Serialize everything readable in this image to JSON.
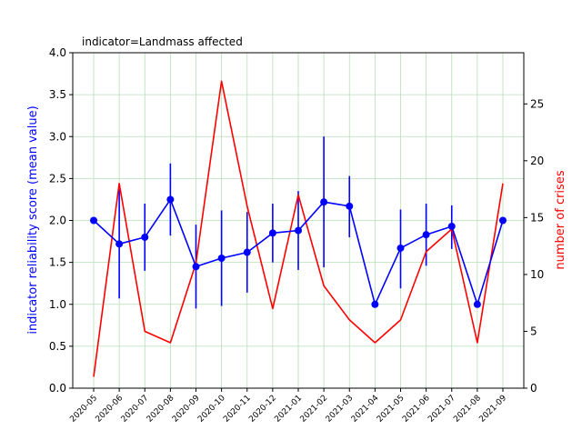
{
  "chart_data": {
    "type": "line",
    "title": "indicator=Landmass affected",
    "categories": [
      "2020-05",
      "2020-06",
      "2020-07",
      "2020-08",
      "2020-09",
      "2020-10",
      "2020-11",
      "2020-12",
      "2021-01",
      "2021-02",
      "2021-03",
      "2021-04",
      "2021-05",
      "2021-06",
      "2021-07",
      "2021-08",
      "2021-09"
    ],
    "left_axis": {
      "label": "indicator reliability score (mean value)",
      "ylim": [
        0,
        4
      ],
      "ticks": [
        "0.0",
        "0.5",
        "1.0",
        "1.5",
        "2.0",
        "2.5",
        "3.0",
        "3.5",
        "4.0"
      ],
      "color": "#0000ff"
    },
    "right_axis": {
      "label": "number of crises",
      "ylim": [
        0,
        29.5
      ],
      "ticks": [
        "0",
        "5",
        "10",
        "15",
        "20",
        "25"
      ],
      "color": "#ff0000"
    },
    "grid": true,
    "series": [
      {
        "axis": "left",
        "color": "#0000ff",
        "marker": "circle",
        "values": [
          2.0,
          1.72,
          1.8,
          2.25,
          1.45,
          1.55,
          1.62,
          1.85,
          1.88,
          2.22,
          2.17,
          1.0,
          1.67,
          1.83,
          1.93,
          1.0,
          2.0
        ],
        "error_low": [
          2.0,
          1.07,
          1.4,
          1.82,
          0.95,
          0.98,
          1.14,
          1.5,
          1.41,
          1.44,
          1.8,
          1.0,
          1.19,
          1.46,
          1.66,
          1.0,
          2.0
        ],
        "error_high": [
          2.0,
          2.37,
          2.2,
          2.68,
          1.95,
          2.12,
          2.1,
          2.2,
          2.35,
          3.0,
          2.53,
          1.0,
          2.13,
          2.2,
          2.18,
          1.0,
          2.0
        ]
      },
      {
        "axis": "right",
        "color": "#ff0000",
        "marker": "none",
        "values": [
          1,
          18,
          5,
          4,
          11,
          27,
          16,
          7,
          17,
          9,
          6,
          4,
          6,
          12,
          14,
          4,
          18
        ]
      }
    ]
  }
}
